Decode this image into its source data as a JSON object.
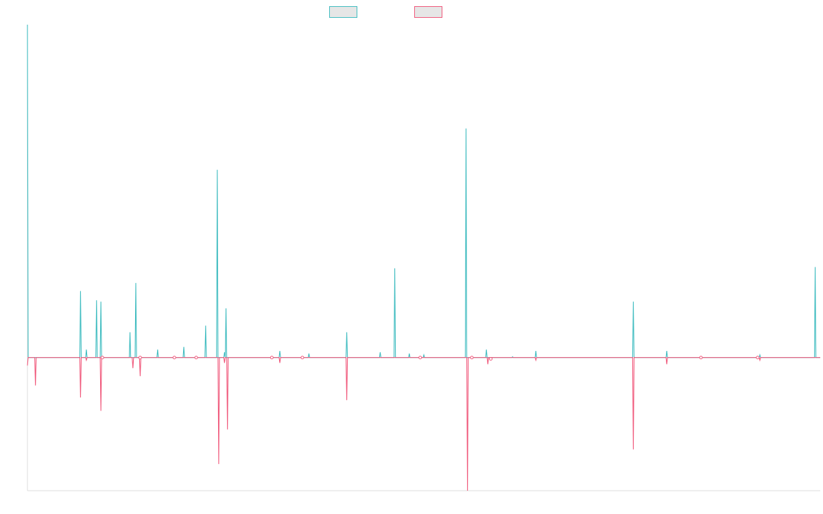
{
  "chart_data": {
    "type": "line",
    "title": "",
    "xlabel": "",
    "ylabel": "",
    "ylim": [
      -100,
      250
    ],
    "grid": false,
    "legend_position": "top-center",
    "colors": {
      "up": "#3fbcc0",
      "down": "#f0577a",
      "legend_fill": "#e6e6e6",
      "axis": "#dddddd"
    },
    "series": [
      {
        "values": [
          [
            0,
            250
          ],
          [
            0.5,
            0
          ],
          [
            36,
            0
          ],
          [
            36.5,
            50
          ],
          [
            37,
            0
          ],
          [
            40,
            0
          ],
          [
            40.5,
            6
          ],
          [
            41,
            0
          ],
          [
            47,
            0
          ],
          [
            47.5,
            43
          ],
          [
            48,
            0
          ],
          [
            50,
            0
          ],
          [
            50.5,
            42
          ],
          [
            51,
            0
          ],
          [
            70,
            0
          ],
          [
            70.5,
            19
          ],
          [
            71,
            0
          ],
          [
            74,
            0
          ],
          [
            74.5,
            56
          ],
          [
            75,
            0
          ],
          [
            89,
            0
          ],
          [
            89.5,
            6
          ],
          [
            90,
            0
          ],
          [
            107,
            0
          ],
          [
            107.5,
            8
          ],
          [
            108,
            0
          ],
          [
            122,
            0
          ],
          [
            122.5,
            24
          ],
          [
            123,
            0
          ],
          [
            130,
            0
          ],
          [
            130.5,
            141
          ],
          [
            131,
            0
          ],
          [
            135,
            0
          ],
          [
            135.5,
            4
          ],
          [
            136,
            0
          ],
          [
            136.5,
            37
          ],
          [
            137,
            0
          ],
          [
            173,
            0
          ],
          [
            173.5,
            5
          ],
          [
            174,
            0
          ],
          [
            193,
            0
          ],
          [
            193.5,
            3
          ],
          [
            194,
            0
          ],
          [
            219,
            0
          ],
          [
            219.5,
            19
          ],
          [
            220,
            0
          ],
          [
            242,
            0
          ],
          [
            242.5,
            4
          ],
          [
            243,
            0
          ],
          [
            252,
            0
          ],
          [
            252.5,
            67
          ],
          [
            253,
            0
          ],
          [
            262,
            0
          ],
          [
            262.5,
            3
          ],
          [
            263,
            0
          ],
          [
            272,
            0
          ],
          [
            272.5,
            2
          ],
          [
            273,
            0
          ],
          [
            301,
            0
          ],
          [
            301.5,
            172
          ],
          [
            302,
            0
          ],
          [
            315,
            0
          ],
          [
            315.5,
            6
          ],
          [
            316,
            0
          ],
          [
            333,
            0
          ],
          [
            333.5,
            0.6
          ],
          [
            334,
            0
          ],
          [
            349,
            0
          ],
          [
            349.5,
            5
          ],
          [
            350,
            0
          ],
          [
            416,
            0
          ],
          [
            416.5,
            42
          ],
          [
            417,
            0
          ],
          [
            439,
            0
          ],
          [
            439.5,
            5
          ],
          [
            440,
            0
          ],
          [
            503,
            0
          ],
          [
            503.5,
            2
          ],
          [
            504,
            0
          ],
          [
            541,
            0
          ],
          [
            541.5,
            68
          ],
          [
            542,
            0
          ],
          [
            545,
            0
          ]
        ]
      },
      {
        "values": [
          [
            0,
            -6
          ],
          [
            0.5,
            0
          ],
          [
            5,
            0
          ],
          [
            5.5,
            -21
          ],
          [
            6,
            0
          ],
          [
            36,
            0
          ],
          [
            36.5,
            -30
          ],
          [
            37,
            0
          ],
          [
            40,
            0
          ],
          [
            40.5,
            -2
          ],
          [
            41,
            0
          ],
          [
            50,
            0
          ],
          [
            50.5,
            -40
          ],
          [
            51,
            0
          ],
          [
            72,
            0
          ],
          [
            72.5,
            -8
          ],
          [
            73,
            0
          ],
          [
            77,
            0
          ],
          [
            77.5,
            -14
          ],
          [
            78,
            0
          ],
          [
            131,
            0
          ],
          [
            131.5,
            -80
          ],
          [
            132,
            0
          ],
          [
            135,
            0
          ],
          [
            135.5,
            -4
          ],
          [
            136,
            0
          ],
          [
            137,
            0
          ],
          [
            137.5,
            -54
          ],
          [
            138,
            0
          ],
          [
            173,
            0
          ],
          [
            173.5,
            -4
          ],
          [
            174,
            0
          ],
          [
            219,
            0
          ],
          [
            219.5,
            -32
          ],
          [
            220,
            0
          ],
          [
            302,
            0
          ],
          [
            302.5,
            -100
          ],
          [
            303,
            0
          ],
          [
            316,
            0
          ],
          [
            316.5,
            -5
          ],
          [
            317,
            0
          ],
          [
            349,
            0
          ],
          [
            349.5,
            -2
          ],
          [
            350,
            0
          ],
          [
            416,
            0
          ],
          [
            416.5,
            -69
          ],
          [
            417,
            0
          ],
          [
            439,
            0
          ],
          [
            439.5,
            -5
          ],
          [
            440,
            0
          ],
          [
            503,
            0
          ],
          [
            503.5,
            -2
          ],
          [
            504,
            0
          ],
          [
            545,
            0
          ]
        ]
      }
    ],
    "markers": [
      {
        "series": 1,
        "x": 51.5,
        "y": 0
      },
      {
        "series": 1,
        "x": 77.5,
        "y": 0
      },
      {
        "series": 1,
        "x": 101,
        "y": 0
      },
      {
        "series": 1,
        "x": 116,
        "y": 0
      },
      {
        "series": 1,
        "x": 168,
        "y": 0
      },
      {
        "series": 1,
        "x": 189,
        "y": 0
      },
      {
        "series": 1,
        "x": 270,
        "y": 0
      },
      {
        "series": 1,
        "x": 305.5,
        "y": 0
      },
      {
        "series": 1,
        "x": 318.5,
        "y": -1
      },
      {
        "series": 1,
        "x": 463,
        "y": 0
      },
      {
        "series": 1,
        "x": 502,
        "y": 0
      }
    ]
  }
}
